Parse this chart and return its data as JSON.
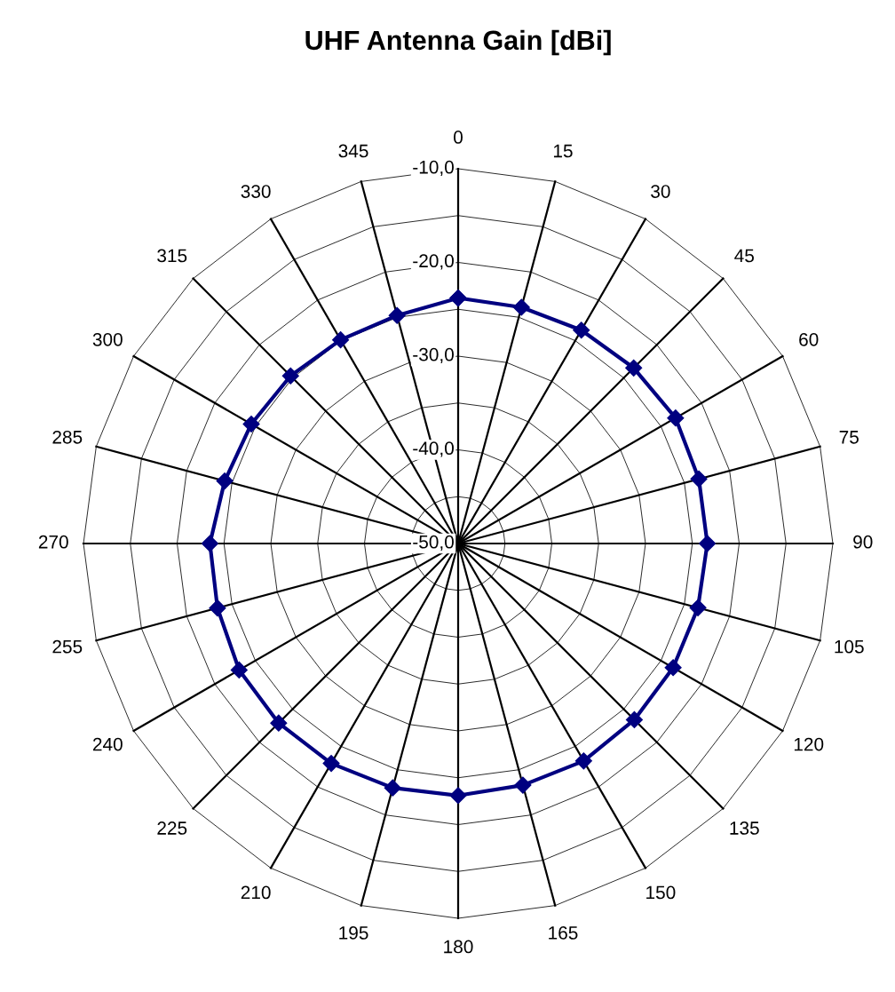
{
  "chart_data": {
    "type": "radar",
    "title": "UHF Antenna Gain [dBi]",
    "categories": [
      "0",
      "15",
      "30",
      "45",
      "60",
      "75",
      "90",
      "105",
      "120",
      "135",
      "150",
      "165",
      "180",
      "195",
      "210",
      "225",
      "240",
      "255",
      "270",
      "285",
      "300",
      "315",
      "330",
      "345"
    ],
    "series": [
      {
        "color": "#000080",
        "values": [
          -23.8,
          -23.9,
          -23.7,
          -23.5,
          -23.2,
          -23.4,
          -23.4,
          -23.5,
          -23.5,
          -23.4,
          -23.2,
          -23.3,
          -23.1,
          -23.0,
          -22.9,
          -22.9,
          -23.0,
          -23.4,
          -23.5,
          -24.2,
          -24.5,
          -24.7,
          -24.9,
          -24.8
        ]
      }
    ],
    "ylim": [
      -50,
      -10
    ],
    "yticks": [
      {
        "value": -50,
        "label": "-50,0"
      },
      {
        "value": -40,
        "label": "-40,0"
      },
      {
        "value": -30,
        "label": "-30,0"
      },
      {
        "value": -20,
        "label": "-20,0"
      },
      {
        "value": -10,
        "label": "-10,0"
      }
    ],
    "marker": "diamond",
    "line_style": "solid",
    "grid": true
  }
}
